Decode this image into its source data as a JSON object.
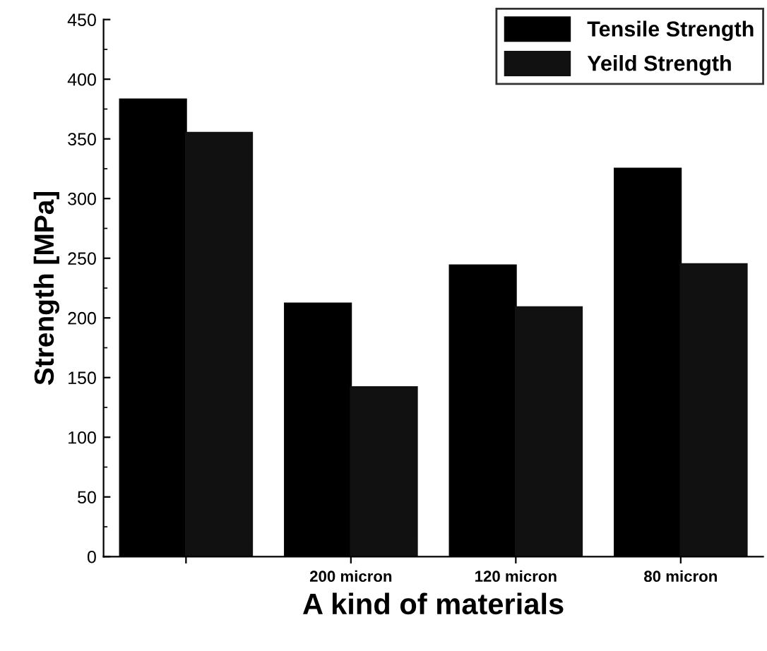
{
  "chart_data": {
    "type": "bar",
    "xlabel": "A kind of materials",
    "ylabel": "Strength [MPa]",
    "categories": [
      null,
      "200 micron",
      "120 micron",
      "80 micron"
    ],
    "series": [
      {
        "name": "Tensile Strength",
        "color": "#000000",
        "values": [
          383,
          212,
          244,
          325
        ]
      },
      {
        "name": "Yeild Strength",
        "color": "#111111",
        "values": [
          355,
          142,
          209,
          245
        ]
      }
    ],
    "ylim": [
      0,
      450
    ],
    "yticks": [
      0,
      50,
      100,
      150,
      200,
      250,
      300,
      350,
      400,
      450
    ],
    "grid": false,
    "legend": "top right"
  }
}
